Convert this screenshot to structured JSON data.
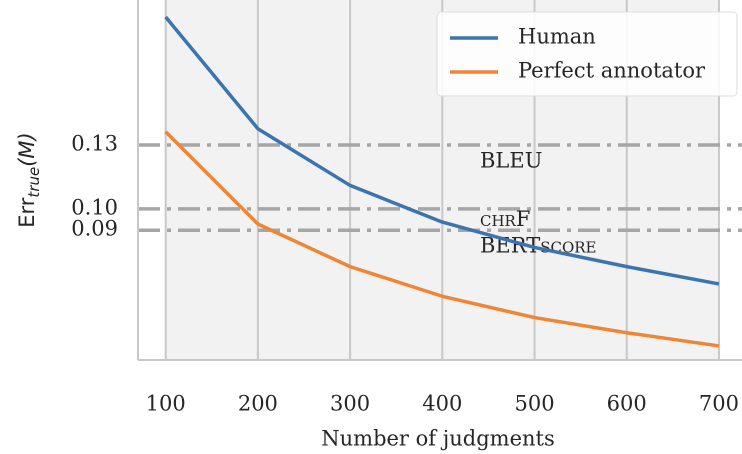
{
  "chart_data": {
    "type": "line",
    "xlabel": "Number of judgments",
    "ylabel": [
      "Err",
      "true",
      "(M)"
    ],
    "x": [
      100,
      200,
      300,
      400,
      500,
      600,
      700
    ],
    "series": [
      {
        "name": "Human",
        "color": "#3b75af",
        "values": [
          0.19,
          0.1376,
          0.111,
          0.0938,
          0.0819,
          0.0729,
          0.0648
        ]
      },
      {
        "name": "Perfect annotator",
        "color": "#ef8636",
        "values": [
          0.1362,
          0.0929,
          0.0729,
          0.059,
          0.049,
          0.0419,
          0.0357
        ]
      }
    ],
    "reference_lines": [
      {
        "label": "BLEU",
        "value": 0.13
      },
      {
        "label": "chrF",
        "value": 0.1
      },
      {
        "label": "BERTscore",
        "value": 0.09
      }
    ],
    "xlim": [
      70,
      725
    ],
    "xticks": [
      100,
      200,
      300,
      400,
      500,
      600,
      700
    ],
    "ylim": [
      0.0291,
      0.198
    ],
    "yticks": [
      0.13,
      {
        "value": 0.1,
        "label": "0.10"
      },
      0.09
    ],
    "grid": true,
    "legend": "upper right"
  }
}
